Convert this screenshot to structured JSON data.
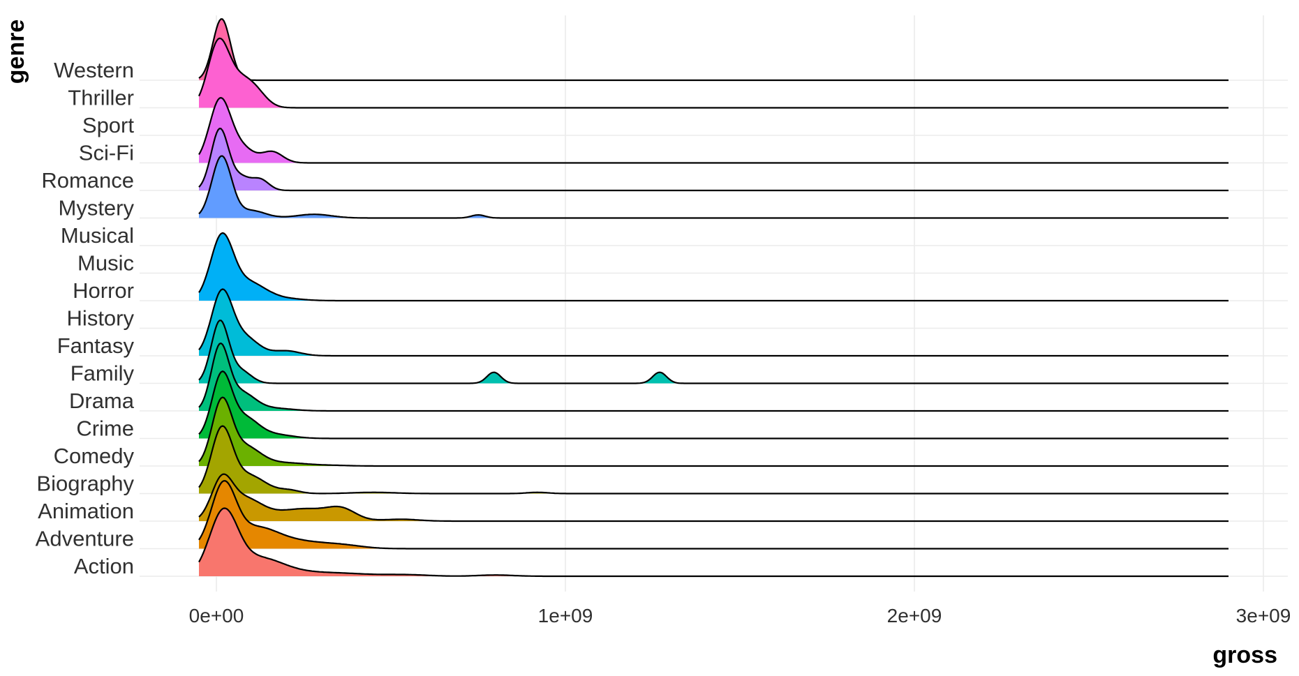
{
  "chart_data": {
    "type": "ridgeline",
    "xlabel": "gross",
    "ylabel": "genre",
    "x_ticks": [
      {
        "value": 0,
        "label": "0e+00"
      },
      {
        "value": 1000000000,
        "label": "1e+09"
      },
      {
        "value": 2000000000,
        "label": "2e+09"
      },
      {
        "value": 3000000000,
        "label": "3e+09"
      }
    ],
    "xlim": [
      -220000000,
      3070000000
    ],
    "density_range": [
      -50000000,
      2900000000
    ],
    "grid": true,
    "legend": "none",
    "categories": [
      "Action",
      "Adventure",
      "Animation",
      "Biography",
      "Comedy",
      "Crime",
      "Drama",
      "Family",
      "Fantasy",
      "History",
      "Horror",
      "Music",
      "Musical",
      "Mystery",
      "Romance",
      "Sci-Fi",
      "Sport",
      "Thriller",
      "Western"
    ],
    "series": [
      {
        "genre": "Action",
        "color": "#F8766D",
        "peaks": [
          [
            20000000,
            40000000,
            1.0
          ],
          [
            120000000,
            70000000,
            0.28
          ],
          [
            300000000,
            120000000,
            0.06
          ],
          [
            550000000,
            60000000,
            0.02
          ],
          [
            800000000,
            50000000,
            0.02
          ]
        ]
      },
      {
        "genre": "Adventure",
        "color": "#E58700",
        "peaks": [
          [
            20000000,
            35000000,
            1.0
          ],
          [
            110000000,
            60000000,
            0.3
          ],
          [
            220000000,
            80000000,
            0.12
          ],
          [
            360000000,
            60000000,
            0.05
          ]
        ]
      },
      {
        "genre": "Animation",
        "color": "#C99800",
        "peaks": [
          [
            15000000,
            30000000,
            0.6
          ],
          [
            80000000,
            50000000,
            0.35
          ],
          [
            250000000,
            80000000,
            0.2
          ],
          [
            360000000,
            40000000,
            0.15
          ],
          [
            530000000,
            50000000,
            0.03
          ]
        ]
      },
      {
        "genre": "Biography",
        "color": "#A3A500",
        "peaks": [
          [
            15000000,
            30000000,
            1.0
          ],
          [
            90000000,
            50000000,
            0.3
          ],
          [
            210000000,
            30000000,
            0.05
          ],
          [
            450000000,
            60000000,
            0.02
          ],
          [
            920000000,
            30000000,
            0.02
          ]
        ]
      },
      {
        "genre": "Comedy",
        "color": "#6BB100",
        "peaks": [
          [
            15000000,
            28000000,
            1.0
          ],
          [
            80000000,
            45000000,
            0.32
          ],
          [
            200000000,
            60000000,
            0.05
          ],
          [
            330000000,
            50000000,
            0.01
          ]
        ]
      },
      {
        "genre": "Crime",
        "color": "#00BA38",
        "peaks": [
          [
            15000000,
            28000000,
            1.0
          ],
          [
            80000000,
            40000000,
            0.33
          ],
          [
            170000000,
            50000000,
            0.06
          ]
        ]
      },
      {
        "genre": "Drama",
        "color": "#00BF7D",
        "peaks": [
          [
            10000000,
            25000000,
            1.0
          ],
          [
            70000000,
            40000000,
            0.3
          ],
          [
            170000000,
            50000000,
            0.04
          ]
        ]
      },
      {
        "genre": "Family",
        "color": "#00C0AF",
        "peaks": [
          [
            10000000,
            25000000,
            1.0
          ],
          [
            70000000,
            30000000,
            0.2
          ],
          [
            795000000,
            20000000,
            0.18
          ],
          [
            1270000000,
            20000000,
            0.18
          ]
        ]
      },
      {
        "genre": "Fantasy",
        "color": "#00BCD8",
        "peaks": [
          [
            15000000,
            30000000,
            1.0
          ],
          [
            80000000,
            40000000,
            0.3
          ],
          [
            200000000,
            40000000,
            0.08
          ]
        ]
      },
      {
        "genre": "Horror",
        "color": "#00B0F6",
        "peaks": [
          [
            15000000,
            32000000,
            1.0
          ],
          [
            90000000,
            50000000,
            0.3
          ],
          [
            200000000,
            50000000,
            0.03
          ]
        ]
      },
      {
        "genre": "Mystery",
        "color": "#619CFF",
        "peaks": [
          [
            15000000,
            28000000,
            1.0
          ],
          [
            100000000,
            40000000,
            0.12
          ],
          [
            280000000,
            50000000,
            0.06
          ],
          [
            750000000,
            20000000,
            0.05
          ]
        ]
      },
      {
        "genre": "Romance",
        "color": "#B983FF",
        "peaks": [
          [
            10000000,
            25000000,
            1.0
          ],
          [
            70000000,
            25000000,
            0.2
          ],
          [
            125000000,
            25000000,
            0.18
          ]
        ]
      },
      {
        "genre": "Sci-Fi",
        "color": "#E76BF3",
        "peaks": [
          [
            10000000,
            30000000,
            1.0
          ],
          [
            70000000,
            35000000,
            0.25
          ],
          [
            160000000,
            30000000,
            0.18
          ]
        ]
      },
      {
        "genre": "Thriller",
        "color": "#FD61D1",
        "peaks": [
          [
            5000000,
            30000000,
            1.0
          ],
          [
            70000000,
            40000000,
            0.45
          ],
          [
            120000000,
            30000000,
            0.12
          ]
        ]
      },
      {
        "genre": "Western",
        "color": "#FF67A4",
        "peaks": [
          [
            15000000,
            25000000,
            1.0
          ]
        ]
      }
    ]
  }
}
